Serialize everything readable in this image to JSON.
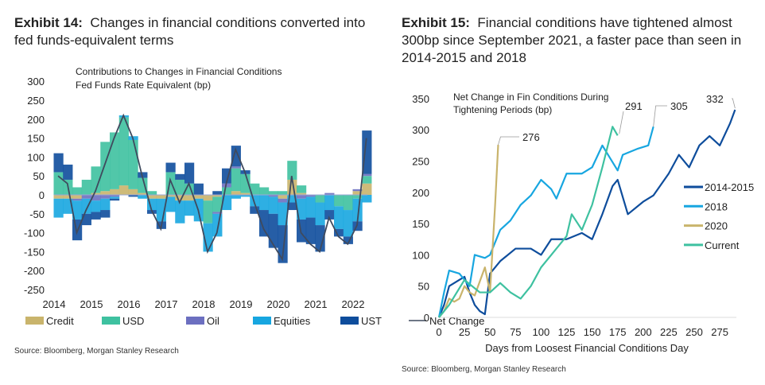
{
  "exhibit14": {
    "label": "Exhibit 14:",
    "title": "Changes in financial conditions converted into fed funds-equivalent terms",
    "source": "Source: Bloomberg, Morgan Stanley Research"
  },
  "exhibit15": {
    "label": "Exhibit 15:",
    "title": "Financial conditions have tightened almost 300bp since September 2021, a faster pace than seen in 2014-2015 and 2018",
    "source": "Source: Bloomberg, Morgan Stanley Research"
  },
  "chart_data": [
    {
      "type": "bar",
      "stacked": true,
      "title": "Contributions to Changes in Financial Conditions",
      "subtitle": "Fed Funds Rate Equivalent (bp)",
      "xlabel": "",
      "ylabel": "",
      "ylim": [
        -250,
        300
      ],
      "yticks": [
        "300",
        "250",
        "200",
        "150",
        "100",
        "50",
        "0",
        "-50",
        "-100",
        "-150",
        "-200",
        "-250"
      ],
      "xticks": [
        "2014",
        "2015",
        "2016",
        "2017",
        "2018",
        "2019",
        "2020",
        "2021",
        "2022"
      ],
      "legend_position": "bottom",
      "x": [
        2014.0,
        2014.25,
        2014.5,
        2014.75,
        2015.0,
        2015.25,
        2015.5,
        2015.75,
        2016.0,
        2016.25,
        2016.5,
        2016.75,
        2017.0,
        2017.25,
        2017.5,
        2017.75,
        2018.0,
        2018.25,
        2018.5,
        2018.75,
        2019.0,
        2019.25,
        2019.5,
        2019.75,
        2020.0,
        2020.25,
        2020.5,
        2020.75,
        2021.0,
        2021.25,
        2021.5,
        2021.75,
        2022.0,
        2022.25
      ],
      "series": [
        {
          "name": "Credit",
          "color": "#C9B46C",
          "values": [
            -10,
            -10,
            -10,
            0,
            5,
            10,
            15,
            25,
            15,
            5,
            -10,
            -10,
            -5,
            -15,
            -15,
            -10,
            -15,
            -5,
            0,
            10,
            5,
            0,
            0,
            0,
            -10,
            40,
            5,
            0,
            0,
            0,
            0,
            0,
            10,
            30
          ]
        },
        {
          "name": "USD",
          "color": "#3EC1A0",
          "values": [
            60,
            40,
            20,
            40,
            70,
            130,
            150,
            180,
            130,
            40,
            10,
            0,
            60,
            40,
            30,
            0,
            -60,
            -40,
            20,
            60,
            50,
            30,
            20,
            10,
            10,
            50,
            20,
            0,
            -20,
            0,
            -30,
            -40,
            -10,
            20
          ]
        },
        {
          "name": "Oil",
          "color": "#6C6FC0",
          "values": [
            0,
            0,
            -5,
            -10,
            -15,
            -10,
            -5,
            0,
            0,
            0,
            0,
            0,
            0,
            0,
            0,
            0,
            0,
            -5,
            10,
            5,
            0,
            0,
            0,
            -5,
            -10,
            0,
            -10,
            -5,
            0,
            5,
            0,
            0,
            5,
            5
          ]
        },
        {
          "name": "Equities",
          "color": "#17A6E0",
          "values": [
            -50,
            -40,
            -50,
            -40,
            -30,
            -30,
            -5,
            5,
            10,
            -10,
            -30,
            -60,
            -40,
            -60,
            -40,
            -60,
            -75,
            -60,
            -40,
            -10,
            -5,
            -30,
            -40,
            -45,
            -60,
            -20,
            -55,
            -55,
            -60,
            -40,
            -60,
            -70,
            -60,
            -20
          ]
        },
        {
          "name": "UST",
          "color": "#0E4D9C",
          "values": [
            50,
            40,
            -55,
            -30,
            -20,
            -20,
            -5,
            0,
            -5,
            15,
            -10,
            -20,
            25,
            15,
            55,
            30,
            0,
            10,
            40,
            55,
            10,
            -20,
            -70,
            -90,
            -100,
            -20,
            -60,
            -70,
            -70,
            -25,
            -20,
            -20,
            -25,
            115
          ]
        },
        {
          "name": "Net Change",
          "type": "line",
          "color": "#3F4A5E",
          "values": [
            50,
            30,
            -100,
            -40,
            10,
            80,
            150,
            210,
            150,
            50,
            -40,
            -90,
            40,
            -20,
            30,
            -40,
            -150,
            -100,
            30,
            120,
            60,
            -20,
            -90,
            -130,
            -170,
            50,
            -100,
            -130,
            -150,
            -60,
            -110,
            -130,
            -80,
            150
          ]
        }
      ]
    },
    {
      "type": "line",
      "title": "Net Change in Fin Conditions During Tightening Periods (bp)",
      "xlabel": "Days from Loosest Financial Conditions Day",
      "ylabel": "",
      "xlim": [
        0,
        290
      ],
      "ylim": [
        0,
        350
      ],
      "xticks": [
        "0",
        "25",
        "50",
        "75",
        "100",
        "125",
        "150",
        "175",
        "200",
        "225",
        "250",
        "275"
      ],
      "yticks": [
        "0",
        "50",
        "100",
        "150",
        "200",
        "250",
        "300",
        "350"
      ],
      "legend_position": "right",
      "series": [
        {
          "name": "2014-2015",
          "color": "#0E4D9C",
          "end_label": "332",
          "points": [
            [
              0,
              0
            ],
            [
              5,
              20
            ],
            [
              10,
              50
            ],
            [
              20,
              60
            ],
            [
              25,
              65
            ],
            [
              30,
              40
            ],
            [
              35,
              20
            ],
            [
              40,
              10
            ],
            [
              45,
              5
            ],
            [
              50,
              70
            ],
            [
              60,
              90
            ],
            [
              75,
              110
            ],
            [
              90,
              110
            ],
            [
              100,
              100
            ],
            [
              110,
              125
            ],
            [
              125,
              125
            ],
            [
              140,
              135
            ],
            [
              150,
              125
            ],
            [
              160,
              165
            ],
            [
              170,
              210
            ],
            [
              175,
              220
            ],
            [
              185,
              165
            ],
            [
              200,
              185
            ],
            [
              210,
              195
            ],
            [
              225,
              230
            ],
            [
              235,
              260
            ],
            [
              245,
              240
            ],
            [
              255,
              275
            ],
            [
              265,
              290
            ],
            [
              275,
              275
            ],
            [
              285,
              310
            ],
            [
              290,
              332
            ]
          ]
        },
        {
          "name": "2018",
          "color": "#17A6E0",
          "end_label": "305",
          "points": [
            [
              0,
              0
            ],
            [
              5,
              40
            ],
            [
              10,
              75
            ],
            [
              20,
              70
            ],
            [
              30,
              50
            ],
            [
              35,
              100
            ],
            [
              45,
              95
            ],
            [
              50,
              100
            ],
            [
              60,
              140
            ],
            [
              70,
              155
            ],
            [
              80,
              180
            ],
            [
              90,
              195
            ],
            [
              100,
              220
            ],
            [
              110,
              205
            ],
            [
              115,
              190
            ],
            [
              125,
              230
            ],
            [
              140,
              230
            ],
            [
              150,
              240
            ],
            [
              160,
              275
            ],
            [
              175,
              235
            ],
            [
              180,
              260
            ],
            [
              195,
              270
            ],
            [
              205,
              275
            ],
            [
              210,
              305
            ]
          ]
        },
        {
          "name": "2020",
          "color": "#C9B46C",
          "end_label": "276",
          "points": [
            [
              0,
              0
            ],
            [
              5,
              10
            ],
            [
              10,
              30
            ],
            [
              15,
              25
            ],
            [
              20,
              30
            ],
            [
              25,
              50
            ],
            [
              30,
              40
            ],
            [
              35,
              35
            ],
            [
              45,
              80
            ],
            [
              50,
              40
            ],
            [
              55,
              180
            ],
            [
              58,
              276
            ]
          ]
        },
        {
          "name": "Current",
          "color": "#3EC1A0",
          "end_label": "291",
          "points": [
            [
              0,
              0
            ],
            [
              10,
              20
            ],
            [
              25,
              60
            ],
            [
              40,
              40
            ],
            [
              50,
              40
            ],
            [
              60,
              55
            ],
            [
              70,
              40
            ],
            [
              80,
              30
            ],
            [
              90,
              50
            ],
            [
              100,
              80
            ],
            [
              110,
              100
            ],
            [
              125,
              130
            ],
            [
              130,
              165
            ],
            [
              140,
              140
            ],
            [
              150,
              180
            ],
            [
              160,
              240
            ],
            [
              170,
              305
            ],
            [
              175,
              291
            ]
          ]
        }
      ]
    }
  ]
}
